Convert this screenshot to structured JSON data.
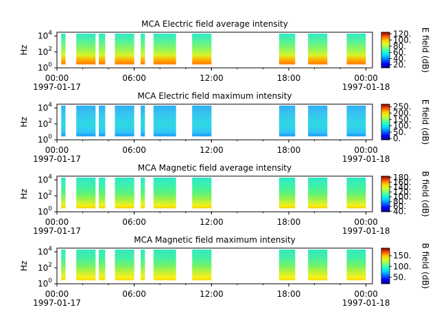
{
  "chart_data": [
    {
      "type": "heatmap",
      "title": "MCA  Electric field average intensity",
      "ylabel": "Hz",
      "yscale": "log",
      "ylim": [
        1,
        30000
      ],
      "xlim": [
        "1997-01-17T00:00",
        "1997-01-18T00:30"
      ],
      "x_ticks": [
        {
          "time": "1997-01-17T00:00",
          "label": "00:00",
          "date": "1997-01-17"
        },
        {
          "time": "1997-01-17T06:00",
          "label": "06:00",
          "date": ""
        },
        {
          "time": "1997-01-17T12:00",
          "label": "12:00",
          "date": ""
        },
        {
          "time": "1997-01-17T18:00",
          "label": "18:00",
          "date": ""
        },
        {
          "time": "1997-01-18T00:00",
          "label": "00:00",
          "date": "1997-01-18"
        }
      ],
      "y_ticks": [
        {
          "value": 1,
          "base": "10",
          "exp": "0"
        },
        {
          "value": 100,
          "base": "10",
          "exp": "2"
        },
        {
          "value": 10000,
          "base": "10",
          "exp": "4"
        }
      ],
      "colorbar": {
        "label": "E field (dB)",
        "range": [
          10,
          125
        ],
        "ticks": [
          {
            "value": 20,
            "label": "20."
          },
          {
            "value": 40,
            "label": "40."
          },
          {
            "value": 60,
            "label": "60."
          },
          {
            "value": 80,
            "label": "80."
          },
          {
            "value": 100,
            "label": "100."
          },
          {
            "value": 120,
            "label": "120."
          }
        ]
      },
      "colormap": "jet",
      "x_data_segments": [
        [
          "1997-01-17T00:20",
          "1997-01-17T00:40"
        ],
        [
          "1997-01-17T01:30",
          "1997-01-17T03:00"
        ],
        [
          "1997-01-17T03:15",
          "1997-01-17T03:45"
        ],
        [
          "1997-01-17T04:30",
          "1997-01-17T06:00"
        ],
        [
          "1997-01-17T06:30",
          "1997-01-17T06:50"
        ],
        [
          "1997-01-17T07:30",
          "1997-01-17T09:15"
        ],
        [
          "1997-01-17T10:30",
          "1997-01-17T12:00"
        ],
        [
          "1997-01-17T17:15",
          "1997-01-17T18:30"
        ],
        [
          "1997-01-17T19:30",
          "1997-01-17T21:00"
        ],
        [
          "1997-01-17T22:30",
          "1997-01-17T23:59"
        ]
      ]
    },
    {
      "type": "heatmap",
      "title": "MCA  Electric field maximum intensity",
      "ylabel": "Hz",
      "yscale": "log",
      "ylim": [
        1,
        30000
      ],
      "xlim": [
        "1997-01-17T00:00",
        "1997-01-18T00:30"
      ],
      "x_ticks": [
        {
          "time": "1997-01-17T00:00",
          "label": "00:00",
          "date": "1997-01-17"
        },
        {
          "time": "1997-01-17T06:00",
          "label": "06:00",
          "date": ""
        },
        {
          "time": "1997-01-17T12:00",
          "label": "12:00",
          "date": ""
        },
        {
          "time": "1997-01-17T18:00",
          "label": "18:00",
          "date": ""
        },
        {
          "time": "1997-01-18T00:00",
          "label": "00:00",
          "date": "1997-01-18"
        }
      ],
      "y_ticks": [
        {
          "value": 1,
          "base": "10",
          "exp": "0"
        },
        {
          "value": 100,
          "base": "10",
          "exp": "2"
        },
        {
          "value": 10000,
          "base": "10",
          "exp": "4"
        }
      ],
      "colorbar": {
        "label": "E field (dB)",
        "range": [
          -10,
          270
        ],
        "ticks": [
          {
            "value": 0,
            "label": "0."
          },
          {
            "value": 50,
            "label": "50."
          },
          {
            "value": 100,
            "label": "100."
          },
          {
            "value": 150,
            "label": "150."
          },
          {
            "value": 200,
            "label": "200."
          },
          {
            "value": 250,
            "label": "250."
          }
        ]
      },
      "colormap": "jet",
      "x_data_segments": [
        [
          "1997-01-17T00:20",
          "1997-01-17T00:40"
        ],
        [
          "1997-01-17T01:30",
          "1997-01-17T03:00"
        ],
        [
          "1997-01-17T03:15",
          "1997-01-17T03:45"
        ],
        [
          "1997-01-17T04:30",
          "1997-01-17T06:00"
        ],
        [
          "1997-01-17T06:30",
          "1997-01-17T06:50"
        ],
        [
          "1997-01-17T07:30",
          "1997-01-17T09:15"
        ],
        [
          "1997-01-17T10:30",
          "1997-01-17T12:00"
        ],
        [
          "1997-01-17T17:15",
          "1997-01-17T18:30"
        ],
        [
          "1997-01-17T19:30",
          "1997-01-17T21:00"
        ],
        [
          "1997-01-17T22:30",
          "1997-01-17T23:59"
        ]
      ]
    },
    {
      "type": "heatmap",
      "title": "MCA  Magnetic field average intensity",
      "ylabel": "Hz",
      "yscale": "log",
      "ylim": [
        1,
        30000
      ],
      "xlim": [
        "1997-01-17T00:00",
        "1997-01-18T00:30"
      ],
      "x_ticks": [
        {
          "time": "1997-01-17T00:00",
          "label": "00:00",
          "date": "1997-01-17"
        },
        {
          "time": "1997-01-17T06:00",
          "label": "06:00",
          "date": ""
        },
        {
          "time": "1997-01-17T12:00",
          "label": "12:00",
          "date": ""
        },
        {
          "time": "1997-01-17T18:00",
          "label": "18:00",
          "date": ""
        },
        {
          "time": "1997-01-18T00:00",
          "label": "00:00",
          "date": "1997-01-18"
        }
      ],
      "y_ticks": [
        {
          "value": 1,
          "base": "10",
          "exp": "0"
        },
        {
          "value": 100,
          "base": "10",
          "exp": "2"
        },
        {
          "value": 10000,
          "base": "10",
          "exp": "4"
        }
      ],
      "colorbar": {
        "label": "B field (dB)",
        "range": [
          38,
          185
        ],
        "ticks": [
          {
            "value": 40,
            "label": "40."
          },
          {
            "value": 60,
            "label": "60."
          },
          {
            "value": 80,
            "label": "80."
          },
          {
            "value": 100,
            "label": "100."
          },
          {
            "value": 120,
            "label": "120."
          },
          {
            "value": 140,
            "label": "140."
          },
          {
            "value": 160,
            "label": "160."
          },
          {
            "value": 180,
            "label": "180."
          }
        ]
      },
      "colormap": "jet",
      "x_data_segments": [
        [
          "1997-01-17T00:20",
          "1997-01-17T00:40"
        ],
        [
          "1997-01-17T01:30",
          "1997-01-17T03:00"
        ],
        [
          "1997-01-17T03:15",
          "1997-01-17T03:45"
        ],
        [
          "1997-01-17T04:30",
          "1997-01-17T06:00"
        ],
        [
          "1997-01-17T06:30",
          "1997-01-17T06:50"
        ],
        [
          "1997-01-17T07:30",
          "1997-01-17T09:15"
        ],
        [
          "1997-01-17T10:30",
          "1997-01-17T12:00"
        ],
        [
          "1997-01-17T17:15",
          "1997-01-17T18:30"
        ],
        [
          "1997-01-17T19:30",
          "1997-01-17T21:00"
        ],
        [
          "1997-01-17T22:30",
          "1997-01-17T23:59"
        ]
      ]
    },
    {
      "type": "heatmap",
      "title": "MCA  Magnetic field maximum intensity",
      "ylabel": "Hz",
      "yscale": "log",
      "ylim": [
        1,
        30000
      ],
      "xlim": [
        "1997-01-17T00:00",
        "1997-01-18T00:30"
      ],
      "x_ticks": [
        {
          "time": "1997-01-17T00:00",
          "label": "00:00",
          "date": "1997-01-17"
        },
        {
          "time": "1997-01-17T06:00",
          "label": "06:00",
          "date": ""
        },
        {
          "time": "1997-01-17T12:00",
          "label": "12:00",
          "date": ""
        },
        {
          "time": "1997-01-17T18:00",
          "label": "18:00",
          "date": ""
        },
        {
          "time": "1997-01-18T00:00",
          "label": "00:00",
          "date": "1997-01-18"
        }
      ],
      "y_ticks": [
        {
          "value": 1,
          "base": "10",
          "exp": "0"
        },
        {
          "value": 100,
          "base": "10",
          "exp": "2"
        },
        {
          "value": 10000,
          "base": "10",
          "exp": "4"
        }
      ],
      "colorbar": {
        "label": "B field (dB)",
        "range": [
          20,
          185
        ],
        "ticks": [
          {
            "value": 50,
            "label": "50."
          },
          {
            "value": 100,
            "label": "100."
          },
          {
            "value": 150,
            "label": "150."
          }
        ]
      },
      "colormap": "jet",
      "x_data_segments": [
        [
          "1997-01-17T00:20",
          "1997-01-17T00:40"
        ],
        [
          "1997-01-17T01:30",
          "1997-01-17T03:00"
        ],
        [
          "1997-01-17T03:15",
          "1997-01-17T03:45"
        ],
        [
          "1997-01-17T04:30",
          "1997-01-17T06:00"
        ],
        [
          "1997-01-17T06:30",
          "1997-01-17T06:50"
        ],
        [
          "1997-01-17T07:30",
          "1997-01-17T09:15"
        ],
        [
          "1997-01-17T10:30",
          "1997-01-17T12:00"
        ],
        [
          "1997-01-17T17:15",
          "1997-01-17T18:30"
        ],
        [
          "1997-01-17T19:30",
          "1997-01-17T21:00"
        ],
        [
          "1997-01-17T22:30",
          "1997-01-17T23:59"
        ]
      ]
    }
  ]
}
